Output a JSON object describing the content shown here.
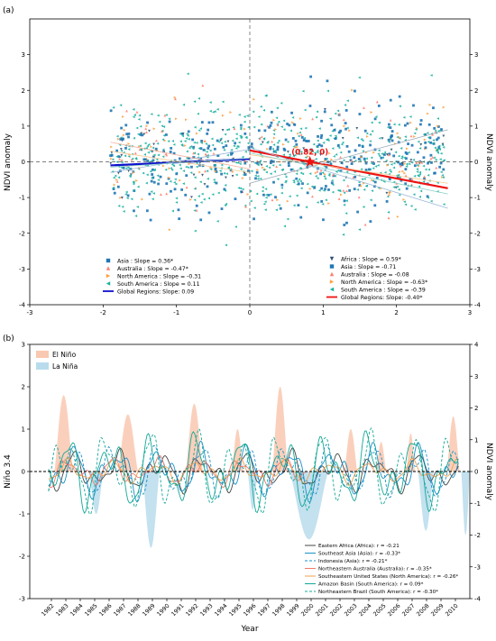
{
  "chart_data": [
    {
      "type": "scatter",
      "panel_label": "(a)",
      "xlabel": "",
      "ylabel": "NDVI anomaly",
      "ylabel_right": "NDVI anomaly",
      "xlim": [
        -3,
        3
      ],
      "ylim": [
        -4,
        4
      ],
      "x_ticks": [
        "-3",
        "-2",
        "-1",
        "0",
        "1",
        "2",
        "3"
      ],
      "y_ticks": [
        "-4",
        "-3",
        "-2",
        "-1",
        "0",
        "1",
        "2",
        "3"
      ],
      "y_ticks_right": [
        "-4",
        "-3",
        "-2",
        "-1",
        "0",
        "1",
        "2",
        "3"
      ],
      "grid": false,
      "annotation": "(0.82, 0)",
      "annotation_point": [
        0.82,
        0
      ],
      "legend_left": {
        "placement": "lower-left",
        "entries": [
          {
            "label": "Asia : Slope = 0.36*",
            "marker": "square",
            "color": "#1f77b4"
          },
          {
            "label": "Australia : Slope = -0.47*",
            "marker": "triangle-up",
            "color": "#ff7f6e"
          },
          {
            "label": "North America : Slope = -0.31",
            "marker": "triangle-right",
            "color": "#ffa040"
          },
          {
            "label": "South America : Slope = 0.11",
            "marker": "triangle-left",
            "color": "#17b0a0"
          },
          {
            "label": "Global Regions: Slope:  0.09",
            "marker": "line",
            "color": "#1010cc"
          }
        ]
      },
      "legend_right": {
        "placement": "lower-right",
        "entries": [
          {
            "label": "Africa : Slope = 0.59*",
            "marker": "triangle-down",
            "color": "#2f4f6f"
          },
          {
            "label": "Asia : Slope = -0.71",
            "marker": "square",
            "color": "#1f77b4"
          },
          {
            "label": "Australia : Slope = -0.08",
            "marker": "triangle-up",
            "color": "#ff7f6e"
          },
          {
            "label": "North America : Slope = -0.63*",
            "marker": "triangle-right",
            "color": "#ffa040"
          },
          {
            "label": "South America : Slope = -0.39",
            "marker": "triangle-left",
            "color": "#17b0a0"
          },
          {
            "label": "Global Regions: Slope: -0.40*",
            "marker": "line",
            "color": "#ee1111"
          }
        ]
      },
      "trend_lines": [
        {
          "x": [
            -1.9,
            0.0
          ],
          "y": [
            -0.1,
            0.08
          ],
          "color": "#1010cc",
          "width": 2.2
        },
        {
          "x": [
            0.0,
            2.7
          ],
          "y": [
            0.32,
            -0.74
          ],
          "color": "#ee1111",
          "width": 2.2
        },
        {
          "x": [
            -1.9,
            0.0
          ],
          "y": [
            -0.3,
            0.35
          ],
          "color": "#9ab8d8",
          "width": 0.8
        },
        {
          "x": [
            -1.9,
            0.0
          ],
          "y": [
            0.55,
            -0.2
          ],
          "color": "#f5b0a0",
          "width": 0.8
        },
        {
          "x": [
            -1.9,
            0.0
          ],
          "y": [
            0.3,
            -0.3
          ],
          "color": "#f5c890",
          "width": 0.8
        },
        {
          "x": [
            -1.9,
            0.0
          ],
          "y": [
            -0.15,
            0.1
          ],
          "color": "#8ad0c8",
          "width": 0.8
        },
        {
          "x": [
            0.0,
            2.7
          ],
          "y": [
            -0.6,
            0.9
          ],
          "color": "#9aa8b8",
          "width": 0.8
        },
        {
          "x": [
            0.0,
            2.7
          ],
          "y": [
            0.4,
            -1.3
          ],
          "color": "#9ab8d8",
          "width": 0.8
        },
        {
          "x": [
            0.0,
            2.7
          ],
          "y": [
            0.2,
            -0.6
          ],
          "color": "#f5c890",
          "width": 0.8
        },
        {
          "x": [
            0.0,
            2.7
          ],
          "y": [
            0.25,
            -0.9
          ],
          "color": "#8ad0c8",
          "width": 0.8
        }
      ],
      "point_cloud": {
        "count": 1200,
        "x_range": [
          -1.9,
          2.65
        ],
        "y_center": 0.1,
        "y_spread": 0.75,
        "note_colors": [
          "#17b0a0",
          "#1f77b4",
          "#ffa040",
          "#ff7f6e",
          "#2f4f6f"
        ]
      }
    },
    {
      "type": "line",
      "panel_label": "(b)",
      "xlabel": "Year",
      "ylabel": "Niño 3.4",
      "ylabel_right": "NDVI anomaly",
      "ylim": [
        -3,
        3
      ],
      "ylim_right": [
        -4,
        4
      ],
      "y_ticks": [
        "-3",
        "-2",
        "-1",
        "0",
        "1",
        "2",
        "3"
      ],
      "y_ticks_right": [
        "-4",
        "-3",
        "-2",
        "-1",
        "0",
        "1",
        "2",
        "3",
        "4"
      ],
      "x_range": [
        1980.5,
        2011
      ],
      "categories": [
        "1982",
        "1983",
        "1984",
        "1985",
        "1986",
        "1987",
        "1988",
        "1989",
        "1990",
        "1991",
        "1992",
        "1993",
        "1994",
        "1995",
        "1996",
        "1997",
        "1998",
        "1999",
        "2000",
        "2001",
        "2002",
        "2003",
        "2004",
        "2005",
        "2006",
        "2007",
        "2008",
        "2009",
        "2010"
      ],
      "enso_legend": [
        {
          "label": "El Niño",
          "color": "#f9c8b0"
        },
        {
          "label": "La Niña",
          "color": "#b8dcec"
        }
      ],
      "enso_events": [
        {
          "type": "el",
          "start": 1982.2,
          "end": 1983.5,
          "peak": 1.8
        },
        {
          "type": "el",
          "start": 1986.6,
          "end": 1988.0,
          "peak": 1.35
        },
        {
          "type": "el",
          "start": 1991.3,
          "end": 1992.5,
          "peak": 1.6
        },
        {
          "type": "el",
          "start": 1994.5,
          "end": 1995.3,
          "peak": 1.0
        },
        {
          "type": "el",
          "start": 1997.3,
          "end": 1998.4,
          "peak": 2.0
        },
        {
          "type": "el",
          "start": 2002.3,
          "end": 2003.2,
          "peak": 1.0
        },
        {
          "type": "el",
          "start": 2004.5,
          "end": 2005.2,
          "peak": 0.7
        },
        {
          "type": "el",
          "start": 2006.6,
          "end": 2007.2,
          "peak": 0.9
        },
        {
          "type": "el",
          "start": 2009.4,
          "end": 2010.3,
          "peak": 1.3
        },
        {
          "type": "la",
          "start": 1984.6,
          "end": 1985.6,
          "peak": -1.0
        },
        {
          "type": "la",
          "start": 1988.3,
          "end": 1989.5,
          "peak": -1.8
        },
        {
          "type": "la",
          "start": 1995.6,
          "end": 1996.3,
          "peak": -0.9
        },
        {
          "type": "la",
          "start": 1998.5,
          "end": 2001.2,
          "peak": -1.6
        },
        {
          "type": "la",
          "start": 2007.4,
          "end": 2008.5,
          "peak": -1.4
        },
        {
          "type": "la",
          "start": 2010.4,
          "end": 2011.0,
          "peak": -1.5
        }
      ],
      "series": [
        {
          "name": "Eastern Africa (Africa): r = -0.21",
          "color": "#444444",
          "dash": "",
          "seed": 1,
          "amp": 0.7
        },
        {
          "name": "Southeast Asia (Asia): r = -0.33*",
          "color": "#1a90c8",
          "dash": "",
          "seed": 2,
          "amp": 0.9
        },
        {
          "name": "Indonesia (Asia): r = -0.21*",
          "color": "#1a90c8",
          "dash": "3,2",
          "seed": 3,
          "amp": 0.9
        },
        {
          "name": "Northeastern Australia (Australia): r = -0.35*",
          "color": "#f07a6a",
          "dash": "",
          "seed": 4,
          "amp": 0.5
        },
        {
          "name": "Southeastern United States (North America): r = -0.26*",
          "color": "#f0a050",
          "dash": "",
          "seed": 5,
          "amp": 0.4
        },
        {
          "name": "Amazon Basin (South America): r = 0.09*",
          "color": "#13a896",
          "dash": "",
          "seed": 6,
          "amp": 1.3
        },
        {
          "name": "Northeastern Brazil (South America): r = -0.30*",
          "color": "#13a896",
          "dash": "3,2",
          "seed": 7,
          "amp": 1.4
        }
      ]
    }
  ]
}
